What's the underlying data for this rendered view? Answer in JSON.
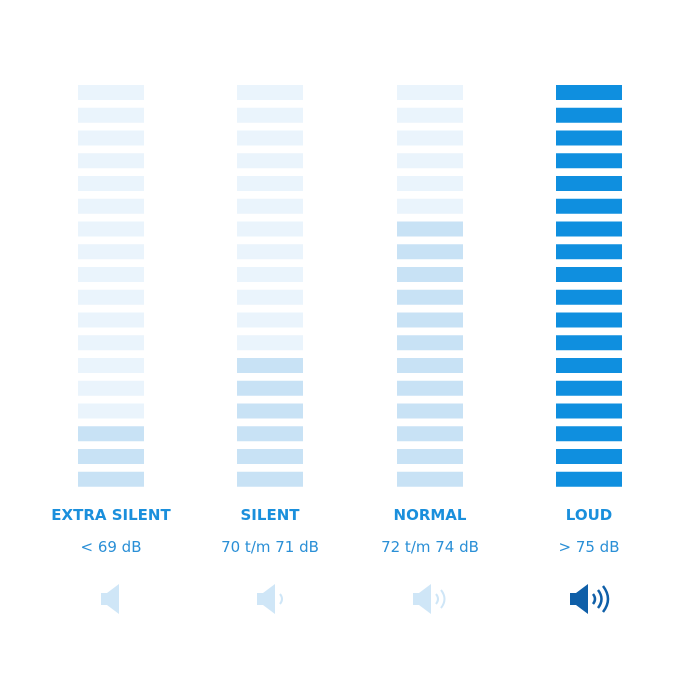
{
  "segments": 18,
  "columns": [
    {
      "label": "EXTRA SILENT",
      "range": "< 69 dB",
      "level": 3
    },
    {
      "label": "SILENT",
      "range": "70 t/m 71 dB",
      "level": 6
    },
    {
      "label": "NORMAL",
      "range": "72 t/m 74 dB",
      "level": 12
    },
    {
      "label": "LOUD",
      "range": "> 75 dB",
      "level": 18
    }
  ]
}
